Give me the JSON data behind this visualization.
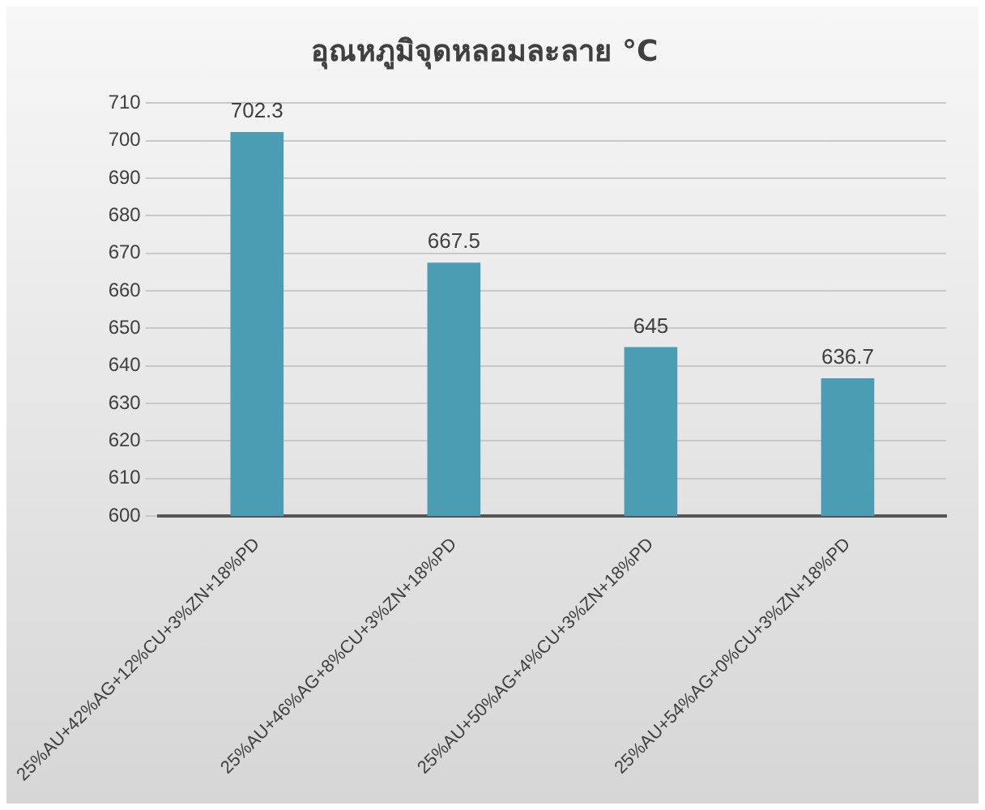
{
  "chart_data": {
    "type": "bar",
    "title": "อุณหภูมิจุดหลอมละลาย °C",
    "categories": [
      "25%AU+42%AG+12%CU+3%ZN+18%PD",
      "25%AU+46%AG+8%CU+3%ZN+18%PD",
      "25%AU+50%AG+4%CU+3%ZN+18%PD",
      "25%AU+54%AG+0%CU+3%ZN+18%PD"
    ],
    "values": [
      702.3,
      667.5,
      645,
      636.7
    ],
    "color": "#4a9db3",
    "ylim": [
      600,
      710
    ],
    "yticks": [
      600,
      610,
      620,
      630,
      640,
      650,
      660,
      670,
      680,
      690,
      700,
      710
    ],
    "grid": "y",
    "data_labels": true
  }
}
